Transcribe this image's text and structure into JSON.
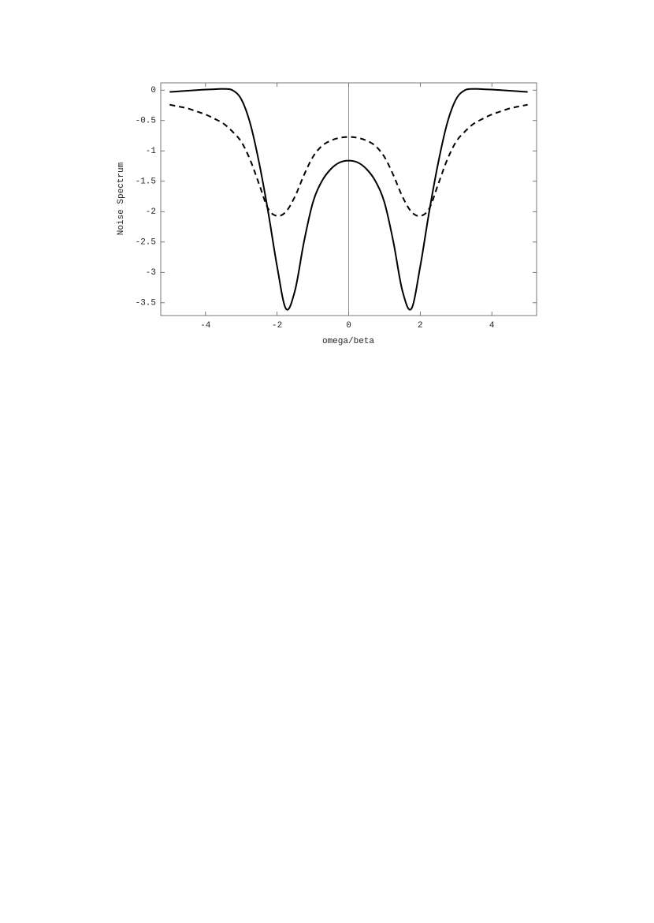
{
  "chart_data": {
    "type": "line",
    "x_label": "omega/beta",
    "y_label": "Noise Spectrum",
    "x": [
      -5,
      -4.75,
      -4.5,
      -4.25,
      -4,
      -3.75,
      -3.5,
      -3.25,
      -3,
      -2.75,
      -2.5,
      -2.25,
      -2,
      -1.75,
      -1.5,
      -1.25,
      -1,
      -0.75,
      -0.5,
      -0.25,
      0,
      0.25,
      0.5,
      0.75,
      1,
      1.25,
      1.5,
      1.75,
      2,
      2.25,
      2.5,
      2.75,
      3,
      3.25,
      3.5,
      3.75,
      4,
      4.25,
      4.5,
      4.75,
      5
    ],
    "series": [
      {
        "color": "#000000",
        "dash": false,
        "values": [
          -0.03,
          -0.02,
          -0.01,
          0.0,
          0.01,
          0.015,
          0.02,
          0.0,
          -0.15,
          -0.55,
          -1.2,
          -2.0,
          -2.9,
          -3.6,
          -3.3,
          -2.5,
          -1.85,
          -1.5,
          -1.3,
          -1.19,
          -1.16,
          -1.19,
          -1.3,
          -1.5,
          -1.85,
          -2.5,
          -3.3,
          -3.6,
          -2.9,
          -2.0,
          -1.2,
          -0.55,
          -0.15,
          0.0,
          0.02,
          0.015,
          0.01,
          0.0,
          -0.01,
          -0.02,
          -0.03
        ]
      },
      {
        "color": "#000000",
        "dash": true,
        "values": [
          -0.24,
          -0.27,
          -0.3,
          -0.35,
          -0.4,
          -0.47,
          -0.55,
          -0.68,
          -0.85,
          -1.15,
          -1.55,
          -1.95,
          -2.07,
          -2.0,
          -1.75,
          -1.4,
          -1.1,
          -0.92,
          -0.83,
          -0.785,
          -0.77,
          -0.785,
          -0.83,
          -0.92,
          -1.1,
          -1.4,
          -1.75,
          -2.0,
          -2.07,
          -1.95,
          -1.55,
          -1.15,
          -0.85,
          -0.68,
          -0.55,
          -0.47,
          -0.4,
          -0.35,
          -0.3,
          -0.27,
          -0.24
        ]
      }
    ],
    "xlim": [
      -5.25,
      5.25
    ],
    "ylim": [
      -3.71,
      0.12
    ],
    "xticks": [
      -4,
      -2,
      0,
      2,
      4
    ],
    "yticks": [
      0,
      -0.5,
      -1,
      -1.5,
      -2,
      -2.5,
      -3,
      -3.5
    ],
    "zero_axis": true
  }
}
